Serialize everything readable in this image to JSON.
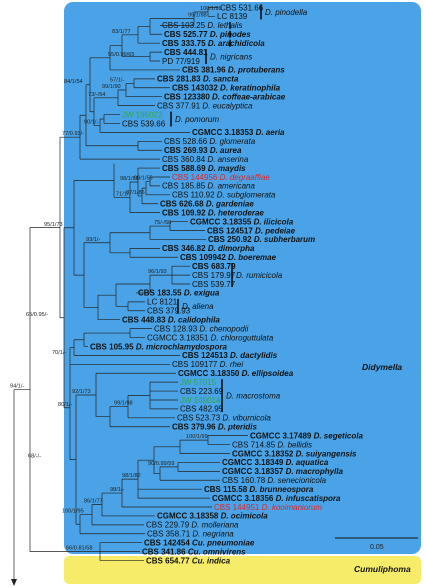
{
  "clades": [
    {
      "name": "Didymella",
      "color": "#4aa3e6"
    },
    {
      "name": "Cumuliphoma",
      "color": "#f6ec6a"
    }
  ],
  "scale_bar": {
    "label": "0.05"
  },
  "taxa": [
    {
      "strain": "CBS 531.66",
      "species": "D. pinodella",
      "bold": false,
      "color": "#111111"
    },
    {
      "strain": "LC 8139",
      "species": "",
      "bold": false,
      "color": "#111111"
    },
    {
      "strain": "CBS 103.25",
      "species": "D. lethalis",
      "bold": false,
      "color": "#111111"
    },
    {
      "strain": "CBS 525.77",
      "species": "D. pinodes",
      "bold": true,
      "color": "#111111"
    },
    {
      "strain": "CBS 333.75",
      "species": "D. arachidicola",
      "bold": true,
      "color": "#111111"
    },
    {
      "strain": "CBS 444.81",
      "species": "D. nigricans",
      "bold": true,
      "color": "#111111"
    },
    {
      "strain": "PD 77/919",
      "species": "",
      "bold": false,
      "color": "#111111"
    },
    {
      "strain": "CBS 381.96",
      "species": "D. protuberans",
      "bold": true,
      "color": "#111111"
    },
    {
      "strain": "CBS 281.83",
      "species": "D. sancta",
      "bold": true,
      "color": "#111111"
    },
    {
      "strain": "CBS 143032",
      "species": "D. keratinophila",
      "bold": true,
      "color": "#111111"
    },
    {
      "strain": "CBS 123380",
      "species": "D. coffeae-arabicae",
      "bold": true,
      "color": "#111111"
    },
    {
      "strain": "CBS 377.91",
      "species": "D. eucalyptica",
      "bold": false,
      "color": "#111111"
    },
    {
      "strain": "JW 196022",
      "species": "D. pomorum",
      "bold": false,
      "color": "#2fa84a"
    },
    {
      "strain": "CBS 539.66",
      "species": "",
      "bold": false,
      "color": "#111111"
    },
    {
      "strain": "CGMCC 3.18353",
      "species": "D. aeria",
      "bold": true,
      "color": "#111111"
    },
    {
      "strain": "CBS 528.66",
      "species": "D. glomerata",
      "bold": false,
      "color": "#111111"
    },
    {
      "strain": "CBS 269.93",
      "species": "D. aurea",
      "bold": true,
      "color": "#111111"
    },
    {
      "strain": "CBS 360.84",
      "species": "D. anserina",
      "bold": false,
      "color": "#111111"
    },
    {
      "strain": "CBS 588.69",
      "species": "D. maydis",
      "bold": true,
      "color": "#111111"
    },
    {
      "strain": "CBS 144956",
      "species": "D. degraaffiae",
      "bold": false,
      "color": "#e0262b"
    },
    {
      "strain": "CBS 185.85",
      "species": "D. americana",
      "bold": false,
      "color": "#111111"
    },
    {
      "strain": "CBS 110.92",
      "species": "D. subglomerata",
      "bold": false,
      "color": "#111111"
    },
    {
      "strain": "CBS 626.68",
      "species": "D. gardeniae",
      "bold": true,
      "color": "#111111"
    },
    {
      "strain": "CBS 109.92",
      "species": "D. heteroderae",
      "bold": true,
      "color": "#111111"
    },
    {
      "strain": "CGMCC 3.18355",
      "species": "D. ilicicola",
      "bold": true,
      "color": "#111111"
    },
    {
      "strain": "CBS 124517",
      "species": "D. pedeiae",
      "bold": true,
      "color": "#111111"
    },
    {
      "strain": "CBS 250.92",
      "species": "D. subherbarum",
      "bold": true,
      "color": "#111111"
    },
    {
      "strain": "CBS 346.82",
      "species": "D. dimorpha",
      "bold": true,
      "color": "#111111"
    },
    {
      "strain": "CBS 109942",
      "species": "D. boeremae",
      "bold": true,
      "color": "#111111"
    },
    {
      "strain": "CBS 683.79",
      "species": "D. rumicicola",
      "bold": true,
      "color": "#111111"
    },
    {
      "strain": "CBS 179.97",
      "species": "",
      "bold": false,
      "color": "#111111"
    },
    {
      "strain": "CBS 539.77",
      "species": "",
      "bold": false,
      "color": "#111111"
    },
    {
      "strain": "CBS 183.55",
      "species": "D. exigua",
      "bold": true,
      "color": "#111111"
    },
    {
      "strain": "LC 8121",
      "species": "D. aliena",
      "bold": false,
      "color": "#111111"
    },
    {
      "strain": "CBS 379.93",
      "species": "",
      "bold": false,
      "color": "#111111"
    },
    {
      "strain": "CBS 448.83",
      "species": "D. calidophila",
      "bold": true,
      "color": "#111111"
    },
    {
      "strain": "CBS 128.93",
      "species": "D. chenopodii",
      "bold": false,
      "color": "#111111"
    },
    {
      "strain": "CGMCC 3.18351",
      "species": "D. chloroguttulata",
      "bold": false,
      "color": "#111111"
    },
    {
      "strain": "CBS 105.95",
      "species": "D. microchlamydospora",
      "bold": true,
      "color": "#111111"
    },
    {
      "strain": "CBS 124513",
      "species": "D. dactylidis",
      "bold": true,
      "color": "#111111"
    },
    {
      "strain": "CBS 109177",
      "species": "D. rhei",
      "bold": false,
      "color": "#111111"
    },
    {
      "strain": "CGMCC 3.18350",
      "species": "D. ellipsoidea",
      "bold": true,
      "color": "#111111"
    },
    {
      "strain": "JW 57015",
      "species": "D. macrostoma",
      "bold": false,
      "color": "#2fa84a"
    },
    {
      "strain": "CBS 223.69",
      "species": "",
      "bold": false,
      "color": "#111111"
    },
    {
      "strain": "JW 149014",
      "species": "",
      "bold": false,
      "color": "#2fa84a"
    },
    {
      "strain": "CBS 482.95",
      "species": "",
      "bold": false,
      "color": "#111111"
    },
    {
      "strain": "CBS 523.73",
      "species": "D. viburnicola",
      "bold": false,
      "color": "#111111"
    },
    {
      "strain": "CBS 379.96",
      "species": "D. pteridis",
      "bold": true,
      "color": "#111111"
    },
    {
      "strain": "CGMCC 3.17489",
      "species": "D. segeticola",
      "bold": true,
      "color": "#111111"
    },
    {
      "strain": "CBS 714.85",
      "species": "D. bellidis",
      "bold": false,
      "color": "#111111"
    },
    {
      "strain": "CGMCC 3.18352",
      "species": "D. suiyangensis",
      "bold": true,
      "color": "#111111"
    },
    {
      "strain": "CGMCC 3.18349",
      "species": "D. aquatica",
      "bold": true,
      "color": "#111111"
    },
    {
      "strain": "CGMCC 3.18357",
      "species": "D. macrophylla",
      "bold": true,
      "color": "#111111"
    },
    {
      "strain": "CBS 160.78",
      "species": "D. senecionicola",
      "bold": false,
      "color": "#111111"
    },
    {
      "strain": "CBS 115.58",
      "species": "D. brunneospora",
      "bold": true,
      "color": "#111111"
    },
    {
      "strain": "CGMCC 3.18356",
      "species": "D. infuscatispora",
      "bold": true,
      "color": "#111111"
    },
    {
      "strain": "CBS 144951",
      "species": "D. kooimaniorum",
      "bold": false,
      "color": "#e0262b"
    },
    {
      "strain": "CGMCC 3.18358",
      "species": "D. ocimicola",
      "bold": true,
      "color": "#111111"
    },
    {
      "strain": "CBS 229.79",
      "species": "D. molleriana",
      "bold": false,
      "color": "#111111"
    },
    {
      "strain": "CBS 358.71",
      "species": "D. negriana",
      "bold": false,
      "color": "#111111"
    },
    {
      "strain": "CBS 142454",
      "species": "Cu. pneumoniae",
      "bold": true,
      "color": "#111111"
    },
    {
      "strain": "CBS 341.86",
      "species": "Cu. omnivirens",
      "bold": true,
      "color": "#111111"
    },
    {
      "strain": "CBS 654.77",
      "species": "Cu. indica",
      "bold": true,
      "color": "#111111"
    }
  ],
  "support_values": [
    "100/1/90",
    "99/1/98",
    "83/1/77",
    "55/0.99/65",
    "57/1/-",
    "99/1/90",
    "73/-/54",
    "90/1/-",
    "84/1/54",
    "77/0.93/-",
    "98/1/55",
    "87/1/86",
    "98/1/81",
    "95/1/73",
    "71/1/-",
    "93/1/-",
    "75/-/50",
    "65/0.95/-",
    "96/1/93",
    "70/1/-",
    "68/-/-",
    "92/1/73",
    "99/1/98",
    "100/1/99",
    "90/0.99/59",
    "98/1/-",
    "98/1/82",
    "86/1/77",
    "100/1/95",
    "80/1/-",
    "94/1/-",
    "66/0.81/58"
  ]
}
